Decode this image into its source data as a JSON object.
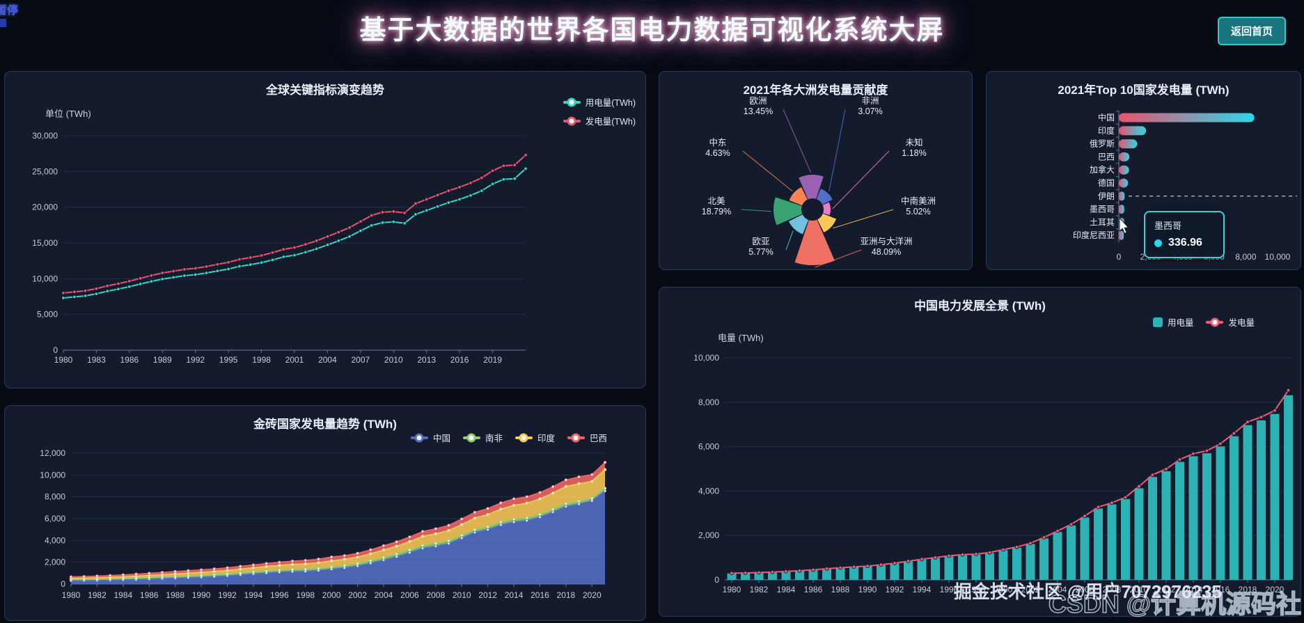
{
  "header": {
    "pause_label": "暂停",
    "title": "基于大数据的世界各国电力数据可视化系统大屏",
    "back_button": "返回首页"
  },
  "watermark": {
    "front": "掘金技术社区 @用户7072976235",
    "back": "CSDN @计算机源码社"
  },
  "chart_data": [
    {
      "id": "global_trend",
      "type": "line",
      "title": "全球关键指标演变趋势",
      "ylabel": "单位 (TWh)",
      "ylim": [
        0,
        30000
      ],
      "ytick_step": 5000,
      "grid": true,
      "legend_position": "top-right",
      "x_years": {
        "start": 1980,
        "end": 2022,
        "label_step": 3,
        "label_max": 2019
      },
      "series": [
        {
          "name": "用电量(TWh)",
          "color": "#36d6c6",
          "values": [
            7300,
            7450,
            7600,
            7880,
            8250,
            8550,
            8880,
            9250,
            9620,
            9950,
            10180,
            10420,
            10560,
            10800,
            11080,
            11350,
            11730,
            11960,
            12250,
            12620,
            13050,
            13280,
            13700,
            14180,
            14730,
            15300,
            15900,
            16700,
            17450,
            17850,
            17950,
            17750,
            19000,
            19550,
            20100,
            20650,
            21100,
            21650,
            22300,
            23250,
            23900,
            24000,
            25400
          ]
        },
        {
          "name": "发电量(TWh)",
          "color": "#e9536f",
          "values": [
            8000,
            8150,
            8300,
            8600,
            9000,
            9300,
            9650,
            10050,
            10450,
            10800,
            11050,
            11300,
            11450,
            11700,
            12000,
            12300,
            12700,
            12950,
            13250,
            13650,
            14100,
            14350,
            14800,
            15300,
            15900,
            16500,
            17150,
            18000,
            18850,
            19300,
            19400,
            19200,
            20500,
            21100,
            21700,
            22300,
            22800,
            23400,
            24100,
            25100,
            25800,
            25900,
            27300
          ]
        }
      ]
    },
    {
      "id": "continent_pie",
      "type": "pie",
      "rose": true,
      "title": "2021年各大洲发电量贡献度",
      "slices": [
        {
          "name": "欧洲",
          "pct": 13.45,
          "color": "#9a60b4"
        },
        {
          "name": "非洲",
          "pct": 3.07,
          "color": "#5470c6"
        },
        {
          "name": "未知",
          "pct": 1.18,
          "color": "#ea7ccc"
        },
        {
          "name": "中南美洲",
          "pct": 5.02,
          "color": "#fac858"
        },
        {
          "name": "亚洲与大洋洲",
          "pct": 48.09,
          "color": "#ee7163"
        },
        {
          "name": "欧亚",
          "pct": 5.77,
          "color": "#73c0de"
        },
        {
          "name": "北美",
          "pct": 18.79,
          "color": "#3ba272"
        },
        {
          "name": "中东",
          "pct": 4.63,
          "color": "#fc8452"
        }
      ]
    },
    {
      "id": "top10",
      "type": "bar",
      "orientation": "horizontal",
      "title": "2021年Top 10国家发电量 (TWh)",
      "categories": [
        "中国",
        "印度",
        "俄罗斯",
        "巴西",
        "加拿大",
        "德国",
        "伊朗",
        "墨西哥",
        "土耳其",
        "印度尼西亚"
      ],
      "values": [
        8534.3,
        1714.8,
        1157.1,
        663.2,
        641.3,
        588.4,
        357.8,
        336.96,
        334.7,
        309.4
      ],
      "xlim": [
        0,
        10000
      ],
      "xticks": [
        0,
        2000,
        4000,
        6000,
        8000,
        10000
      ],
      "bar_gradient": [
        "#e9536f",
        "#2bd8e8"
      ],
      "dashed_row": "伊朗",
      "tooltip": {
        "name": "墨西哥",
        "value": "336.96",
        "dot_color": "#2bd8e8"
      }
    },
    {
      "id": "brics",
      "type": "area",
      "stacked": true,
      "title": "金砖国家发电量趋势 (TWh)",
      "ylim": [
        0,
        12000
      ],
      "ytick_step": 2000,
      "grid": true,
      "legend_position": "top-right",
      "x_years": {
        "start": 1980,
        "end": 2021,
        "label_step": 2
      },
      "series": [
        {
          "name": "中国",
          "color": "#5470c6",
          "values": [
            300,
            310,
            330,
            350,
            380,
            410,
            450,
            500,
            545,
            585,
            621,
            680,
            750,
            840,
            930,
            1005,
            1080,
            1135,
            1160,
            1230,
            1360,
            1480,
            1650,
            1910,
            2200,
            2500,
            2870,
            3280,
            3470,
            3715,
            4210,
            4730,
            4990,
            5420,
            5680,
            5815,
            6130,
            6600,
            7110,
            7330,
            7625,
            8534
          ]
        },
        {
          "name": "南非",
          "color": "#91cc75",
          "values": [
            100,
            103,
            107,
            112,
            118,
            124,
            130,
            136,
            142,
            148,
            165,
            168,
            170,
            174,
            179,
            187,
            194,
            200,
            198,
            194,
            210,
            213,
            216,
            228,
            240,
            244,
            249,
            255,
            251,
            248,
            256,
            262,
            257,
            253,
            252,
            249,
            251,
            253,
            252,
            249,
            229,
            241
          ]
        },
        {
          "name": "印度",
          "color": "#fac858",
          "values": [
            120,
            130,
            142,
            155,
            170,
            188,
            205,
            222,
            242,
            265,
            289,
            310,
            330,
            355,
            380,
            415,
            435,
            463,
            492,
            530,
            560,
            580,
            605,
            635,
            680,
            723,
            775,
            841,
            880,
            950,
            980,
            1052,
            1120,
            1193,
            1282,
            1354,
            1423,
            1484,
            1583,
            1620,
            1560,
            1715
          ]
        },
        {
          "name": "巴西",
          "color": "#ee6666",
          "values": [
            139,
            145,
            152,
            162,
            175,
            188,
            201,
            210,
            218,
            225,
            223,
            231,
            242,
            252,
            260,
            275,
            288,
            302,
            317,
            332,
            348,
            328,
            345,
            364,
            387,
            403,
            419,
            444,
            463,
            466,
            516,
            532,
            553,
            571,
            591,
            581,
            579,
            589,
            601,
            626,
            621,
            663
          ]
        }
      ]
    },
    {
      "id": "china_overview",
      "type": "bar-line",
      "title": "中国电力发展全景 (TWh)",
      "ylabel": "电量 (TWh)",
      "ylim": [
        0,
        10000
      ],
      "ytick_step": 2000,
      "grid": true,
      "x_years": {
        "start": 1980,
        "end": 2021,
        "label_step": 2
      },
      "bar_series": {
        "name": "用电量",
        "color": "#2cb1b5",
        "values": [
          290,
          300,
          320,
          340,
          370,
          400,
          440,
          488,
          532,
          572,
          610,
          665,
          735,
          822,
          910,
          985,
          1058,
          1112,
          1136,
          1205,
          1335,
          1450,
          1618,
          1872,
          2156,
          2450,
          2813,
          3215,
          3400,
          3640,
          4126,
          4635,
          4890,
          5312,
          5566,
          5700,
          6008,
          6468,
          6968,
          7183,
          7472,
          8313
        ]
      },
      "line_series": {
        "name": "发电量",
        "color": "#ee5d79",
        "values": [
          300,
          310,
          330,
          350,
          380,
          410,
          450,
          500,
          545,
          585,
          621,
          680,
          750,
          840,
          930,
          1005,
          1080,
          1135,
          1160,
          1230,
          1360,
          1480,
          1650,
          1910,
          2200,
          2500,
          2870,
          3280,
          3470,
          3715,
          4210,
          4730,
          4990,
          5420,
          5680,
          5815,
          6130,
          6600,
          7110,
          7330,
          7625,
          8534
        ]
      }
    }
  ]
}
